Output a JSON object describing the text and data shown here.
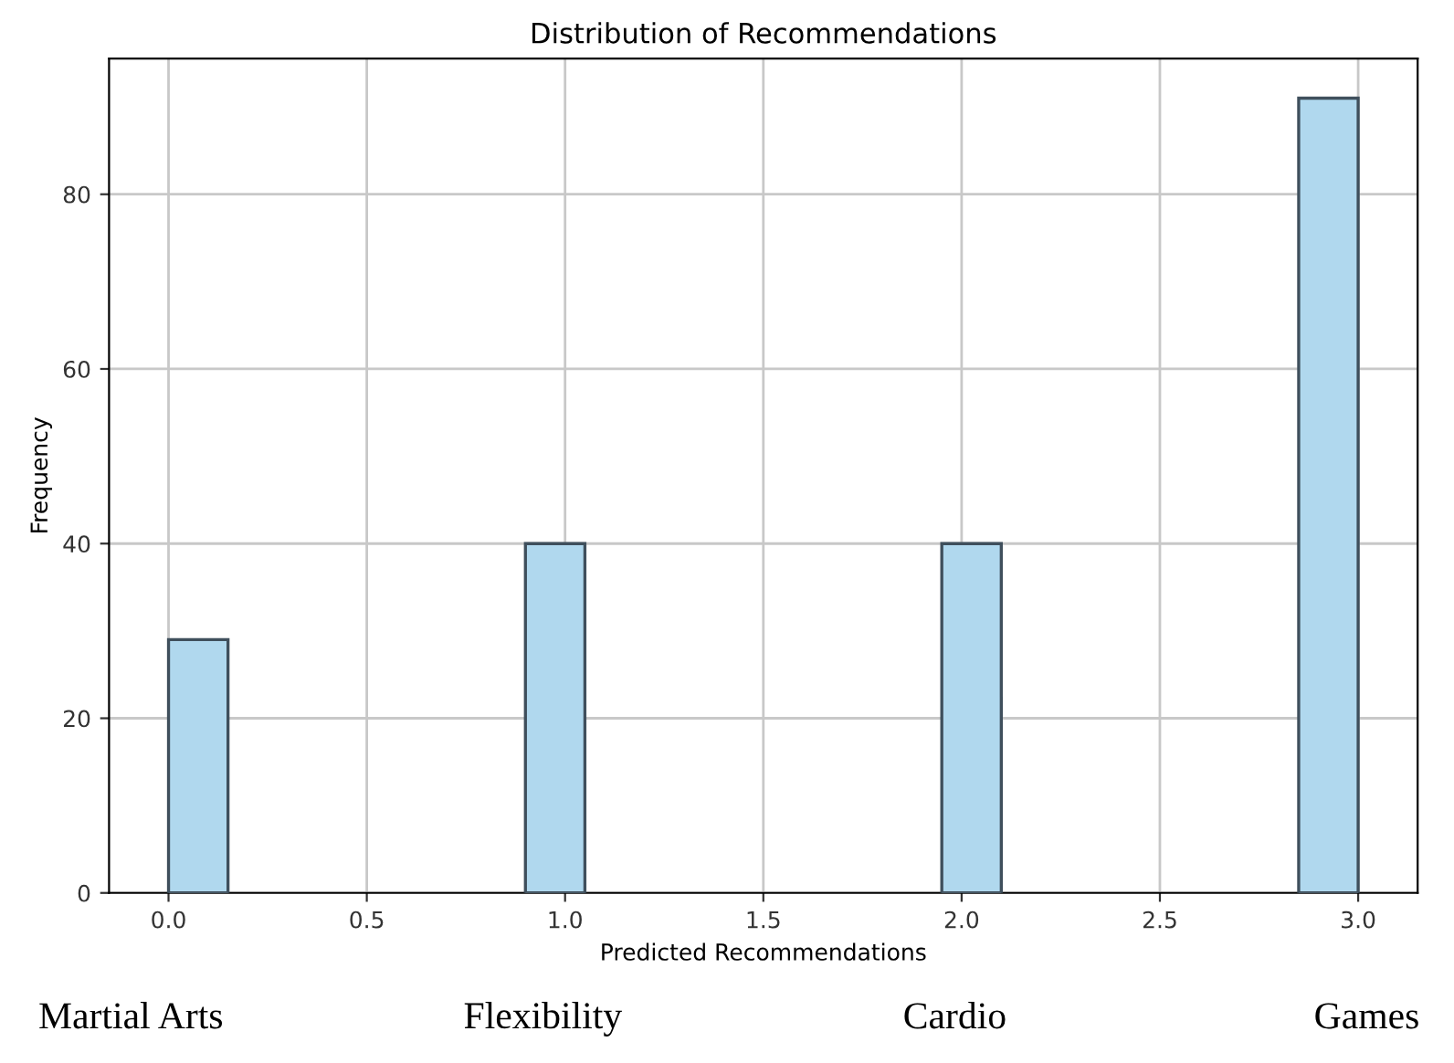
{
  "chart_data": {
    "type": "histogram",
    "title": "Distribution of Recommendations",
    "xlabel": "Predicted Recommendations",
    "ylabel": "Frequency",
    "bins": [
      0,
      0.15,
      0.3,
      0.45,
      0.6,
      0.75,
      0.9,
      1.05,
      1.2,
      1.35,
      1.5,
      1.65,
      1.8,
      1.95,
      2.1,
      2.25,
      2.4,
      2.55,
      2.7,
      2.85,
      3.0
    ],
    "values": [
      29,
      0,
      0,
      0,
      0,
      0,
      40,
      0,
      0,
      0,
      0,
      0,
      0,
      40,
      0,
      0,
      0,
      0,
      0,
      91
    ],
    "color": "#b0d8ee",
    "xlim": [
      -0.15,
      3.15
    ],
    "ylim": [
      0,
      95.55
    ],
    "xticks": [
      {
        "value": 0,
        "label": "0.0"
      },
      0.5,
      {
        "value": 1,
        "label": "1.0"
      },
      1.5,
      {
        "value": 2,
        "label": "2.0"
      },
      2.5,
      {
        "value": 3,
        "label": "3.0"
      }
    ],
    "yticks": [
      0,
      20,
      40,
      60,
      80
    ],
    "grid": true,
    "annotations": [
      "Martial Arts",
      "Flexibility",
      "Cardio",
      "Games"
    ]
  }
}
